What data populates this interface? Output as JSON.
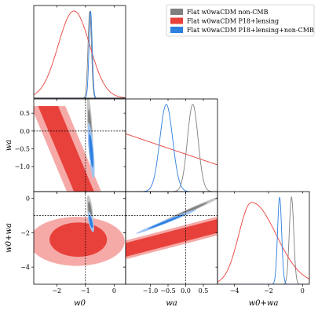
{
  "colors": {
    "noncmb": "#7f7f7f",
    "p18": "#e8413b",
    "combined": "#2d7fe0"
  },
  "legend": {
    "placement": "top-right",
    "entries": [
      {
        "key": "noncmb",
        "label": "Flat w0waCDM non-CMB"
      },
      {
        "key": "p18",
        "label": "Flat w0waCDM P18+lensing"
      },
      {
        "key": "combined",
        "label": "Flat w0waCDM P18+lensing+non-CMB"
      }
    ]
  },
  "chart_data": {
    "type": "corner",
    "parameters": [
      {
        "key": "w0",
        "label": "w0",
        "range": [
          -2.8,
          0.4
        ],
        "ticks": [
          -2,
          -1,
          0
        ],
        "tick_labels": [
          "−2",
          "−1",
          "0"
        ]
      },
      {
        "key": "wa",
        "label": "wa",
        "range": [
          -1.7,
          0.9
        ],
        "ticks": [
          -1.0,
          -0.5,
          0.0,
          0.5
        ],
        "tick_labels": [
          "−1.0",
          "−0.5",
          "0.0",
          "0.5"
        ]
      },
      {
        "key": "w0pwa",
        "label": "w0+wa",
        "range": [
          -5.0,
          0.4
        ],
        "ticks": [
          -4,
          -2,
          0
        ],
        "tick_labels": [
          "−4",
          "−2",
          "0"
        ]
      }
    ],
    "reference_lines": {
      "w0": -1,
      "wa": 0,
      "w0pwa": -1
    },
    "series": [
      {
        "key": "noncmb",
        "name": "Flat w0waCDM non-CMB",
        "marginals": {
          "w0": {
            "mean": -0.85,
            "sd": 0.06
          },
          "wa": {
            "mean": 0.2,
            "sd": 0.15
          },
          "w0pwa": {
            "mean": -0.65,
            "sd": 0.13
          }
        },
        "contours": {
          "w0_wa": {
            "center": [
              -0.84,
              0.05
            ],
            "axis1": [
              0.05,
              -0.6
            ],
            "axis2": [
              0.05,
              0.06
            ]
          },
          "w0_w0pwa": {
            "center": [
              -0.84,
              -0.75
            ],
            "axis1": [
              0.04,
              -0.6
            ],
            "axis2": [
              0.06,
              0.0
            ]
          },
          "wa_w0pwa": {
            "center": [
              0.05,
              -0.75
            ],
            "axis1": [
              0.6,
              0.55
            ],
            "axis2": [
              0.0,
              0.08
            ]
          }
        }
      },
      {
        "key": "p18",
        "name": "Flat w0waCDM P18+lensing",
        "marginals": {
          "w0": {
            "mean": -1.4,
            "sd": 0.55
          },
          "wa": {
            "type": "declining",
            "from": [
              -1.7,
              0.65
            ],
            "to": [
              0.9,
              0.3
            ]
          },
          "w0pwa": {
            "mean": -3.0,
            "sd": 1.0,
            "skew": "right tail"
          }
        },
        "contours": {
          "w0_wa": {
            "type": "open-band",
            "center_line": [
              [
                -2.3,
                0.7
              ],
              [
                -1.05,
                -1.7
              ]
            ],
            "width68": 0.7,
            "width95": 1.2
          },
          "w0_w0pwa": {
            "type": "blob",
            "center": [
              -1.3,
              -2.5
            ],
            "size68": [
              1.3,
              1.5
            ],
            "size95": [
              2.0,
              2.0
            ]
          },
          "wa_w0pwa": {
            "type": "band",
            "center_line": [
              [
                -1.7,
                -3.0
              ],
              [
                0.9,
                -1.6
              ]
            ],
            "width68": 0.8,
            "width95": 1.1
          }
        }
      },
      {
        "key": "combined",
        "name": "Flat w0waCDM P18+lensing+non-CMB",
        "marginals": {
          "w0": {
            "mean": -0.82,
            "sd": 0.055
          },
          "wa": {
            "mean": -0.55,
            "sd": 0.18
          },
          "w0pwa": {
            "mean": -1.35,
            "sd": 0.12
          }
        },
        "contours": {
          "w0_wa": {
            "center": [
              -0.8,
              -0.55
            ],
            "axis1": [
              0.06,
              -0.5
            ],
            "axis2": [
              0.05,
              0.06
            ]
          },
          "w0_w0pwa": {
            "center": [
              -0.81,
              -1.37
            ],
            "axis1": [
              0.05,
              -0.38
            ],
            "axis2": [
              0.05,
              0.02
            ]
          },
          "wa_w0pwa": {
            "center": [
              -0.55,
              -1.35
            ],
            "axis1": [
              0.55,
              0.45
            ],
            "axis2": [
              0.0,
              0.07
            ]
          }
        }
      }
    ]
  }
}
